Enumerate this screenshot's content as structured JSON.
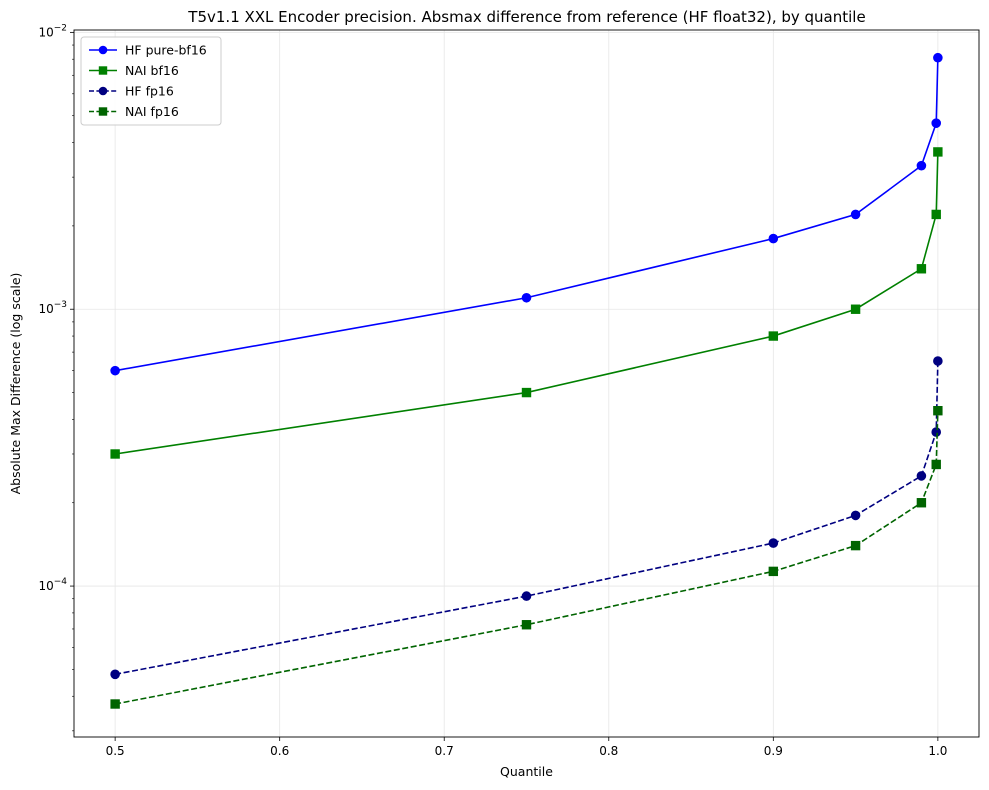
{
  "chart_data": {
    "type": "line",
    "title": "T5v1.1 XXL Encoder precision. Absmax difference from reference (HF float32), by quantile",
    "xlabel": "Quantile",
    "ylabel": "Absolute Max Difference (log scale)",
    "x_scale": "linear",
    "y_scale": "log",
    "xlim": [
      0.475,
      1.025
    ],
    "ylim": [
      2.85e-05,
      0.0102
    ],
    "x_ticks": [
      0.5,
      0.6,
      0.7,
      0.8,
      0.9,
      1.0
    ],
    "x_tick_labels": [
      "0.5",
      "0.6",
      "0.7",
      "0.8",
      "0.9",
      "1.0"
    ],
    "y_ticks": [
      0.0001,
      0.001,
      0.01
    ],
    "y_tick_labels": [
      {
        "base": "10",
        "exp": "−4"
      },
      {
        "base": "10",
        "exp": "−3"
      },
      {
        "base": "10",
        "exp": "−2"
      }
    ],
    "grid": true,
    "legend_position": "upper-left",
    "series": [
      {
        "name": "HF pure-bf16",
        "color": "#0000ff",
        "line_style": "solid",
        "marker": "circle",
        "x": [
          0.5,
          0.75,
          0.9,
          0.95,
          0.99,
          0.999,
          1.0
        ],
        "y": [
          0.0006,
          0.0011,
          0.0018,
          0.0022,
          0.0033,
          0.0047,
          0.0081
        ]
      },
      {
        "name": "NAI bf16",
        "color": "#008000",
        "line_style": "solid",
        "marker": "square",
        "x": [
          0.5,
          0.75,
          0.9,
          0.95,
          0.99,
          0.999,
          1.0
        ],
        "y": [
          0.0003,
          0.0005,
          0.0008,
          0.001,
          0.0014,
          0.0022,
          0.0037
        ]
      },
      {
        "name": "HF fp16",
        "color": "#000080",
        "line_style": "dashed",
        "marker": "circle",
        "x": [
          0.5,
          0.75,
          0.9,
          0.95,
          0.99,
          0.999,
          1.0
        ],
        "y": [
          4.8e-05,
          9.2e-05,
          0.000143,
          0.00018,
          0.00025,
          0.00036,
          0.00065
        ]
      },
      {
        "name": "NAI fp16",
        "color": "#006400",
        "line_style": "dashed",
        "marker": "square",
        "x": [
          0.5,
          0.75,
          0.9,
          0.95,
          0.99,
          0.999,
          1.0
        ],
        "y": [
          3.75e-05,
          7.25e-05,
          0.000113,
          0.00014,
          0.0002,
          0.000275,
          0.00043
        ]
      }
    ]
  }
}
